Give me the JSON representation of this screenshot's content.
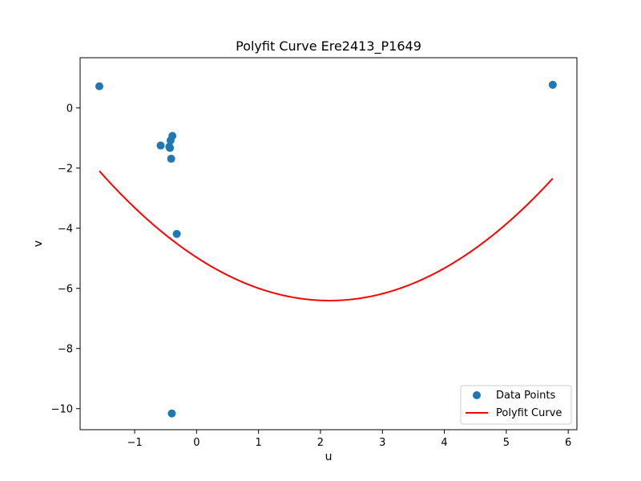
{
  "chart_data": {
    "type": "scatter",
    "title": "Polyfit Curve Ere2413_P1649",
    "xlabel": "u",
    "ylabel": "v",
    "xlim": [
      -1.88,
      6.14
    ],
    "ylim": [
      -10.7,
      1.67
    ],
    "xticks": [
      -1,
      0,
      1,
      2,
      3,
      4,
      5,
      6
    ],
    "yticks": [
      0,
      -2,
      -4,
      -6,
      -8,
      -10
    ],
    "xtick_labels": [
      "−1",
      "0",
      "1",
      "2",
      "3",
      "4",
      "5",
      "6"
    ],
    "ytick_labels": [
      "0",
      "−2",
      "−4",
      "−6",
      "−8",
      "−10"
    ],
    "grid": false,
    "legend_position": "lower-right",
    "series": [
      {
        "name": "Data Points",
        "kind": "scatter",
        "color": "#1f77b4",
        "points": [
          {
            "x": -1.57,
            "y": 0.72
          },
          {
            "x": -0.58,
            "y": -1.25
          },
          {
            "x": -0.42,
            "y": -1.08
          },
          {
            "x": -0.39,
            "y": -0.93
          },
          {
            "x": -0.44,
            "y": -1.29
          },
          {
            "x": -0.43,
            "y": -1.33
          },
          {
            "x": -0.41,
            "y": -1.69
          },
          {
            "x": -0.32,
            "y": -4.19
          },
          {
            "x": -0.4,
            "y": -10.16
          },
          {
            "x": 5.75,
            "y": 0.77
          }
        ]
      },
      {
        "name": "Polyfit Curve",
        "kind": "line",
        "color": "#ff0000",
        "coefficients": [
          0.3125,
          -1.34,
          -4.97
        ],
        "x_range": [
          -1.57,
          5.75
        ]
      }
    ]
  }
}
